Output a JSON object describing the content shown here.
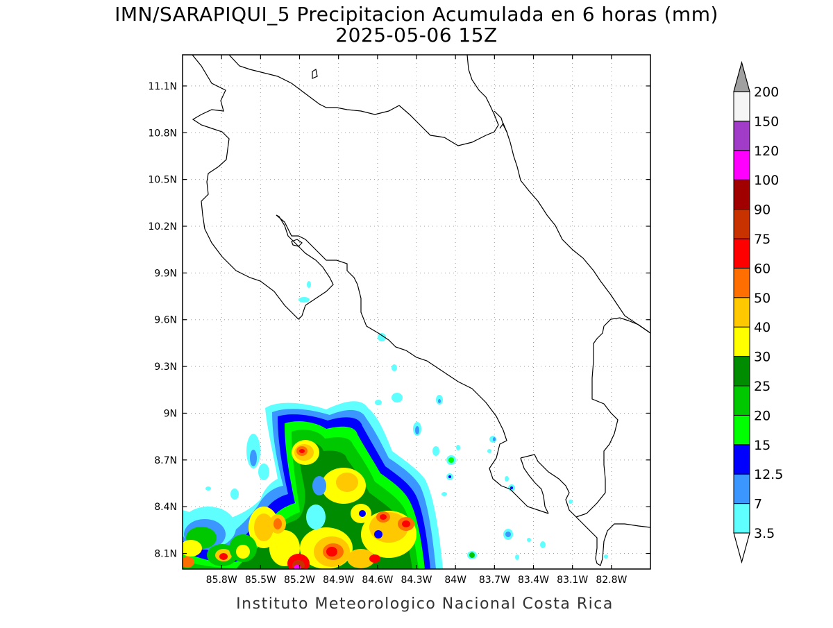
{
  "title": {
    "line1": "IMN/SARAPIQUI_5 Precipitacion Acumulada en 6 horas (mm)",
    "line2": "2025-05-06 15Z"
  },
  "credit": "Instituto Meteorologico Nacional Costa Rica",
  "map": {
    "lon_range": [
      -86.1,
      -82.5
    ],
    "lat_range": [
      8.0,
      11.3
    ],
    "lon_ticks": [
      {
        "value": -85.8,
        "label": "85.8W"
      },
      {
        "value": -85.5,
        "label": "85.5W"
      },
      {
        "value": -85.2,
        "label": "85.2W"
      },
      {
        "value": -84.9,
        "label": "84.9W"
      },
      {
        "value": -84.6,
        "label": "84.6W"
      },
      {
        "value": -84.3,
        "label": "84.3W"
      },
      {
        "value": -84.0,
        "label": "84W"
      },
      {
        "value": -83.7,
        "label": "83.7W"
      },
      {
        "value": -83.4,
        "label": "83.4W"
      },
      {
        "value": -83.1,
        "label": "83.1W"
      },
      {
        "value": -82.8,
        "label": "82.8W"
      }
    ],
    "lat_ticks": [
      {
        "value": 8.1,
        "label": "8.1N"
      },
      {
        "value": 8.4,
        "label": "8.4N"
      },
      {
        "value": 8.7,
        "label": "8.7N"
      },
      {
        "value": 9.0,
        "label": "9N"
      },
      {
        "value": 9.3,
        "label": "9.3N"
      },
      {
        "value": 9.6,
        "label": "9.6N"
      },
      {
        "value": 9.9,
        "label": "9.9N"
      },
      {
        "value": 10.2,
        "label": "10.2N"
      },
      {
        "value": 10.5,
        "label": "10.5N"
      },
      {
        "value": 10.8,
        "label": "10.8N"
      },
      {
        "value": 11.1,
        "label": "11.1N"
      }
    ],
    "grid": true,
    "coastline_color": "#000000",
    "grid_color": "#a0a0a0"
  },
  "colorbar": {
    "under_color": "#ffffff",
    "over_color": "#a0a0a0",
    "levels": [
      {
        "label": "3.5",
        "color": "#60ffff"
      },
      {
        "label": "7",
        "color": "#3c96ff"
      },
      {
        "label": "12.5",
        "color": "#0000ff"
      },
      {
        "label": "15",
        "color": "#00ff00"
      },
      {
        "label": "20",
        "color": "#00c800"
      },
      {
        "label": "25",
        "color": "#008c00"
      },
      {
        "label": "30",
        "color": "#ffff00"
      },
      {
        "label": "40",
        "color": "#ffc800"
      },
      {
        "label": "50",
        "color": "#ff6e00"
      },
      {
        "label": "60",
        "color": "#ff0000"
      },
      {
        "label": "75",
        "color": "#c83200"
      },
      {
        "label": "90",
        "color": "#a00000"
      },
      {
        "label": "100",
        "color": "#ff00ff"
      },
      {
        "label": "120",
        "color": "#a03cc8"
      },
      {
        "label": "150",
        "color": "#f5f5f5"
      },
      {
        "label": "200",
        "color": ""
      }
    ]
  }
}
